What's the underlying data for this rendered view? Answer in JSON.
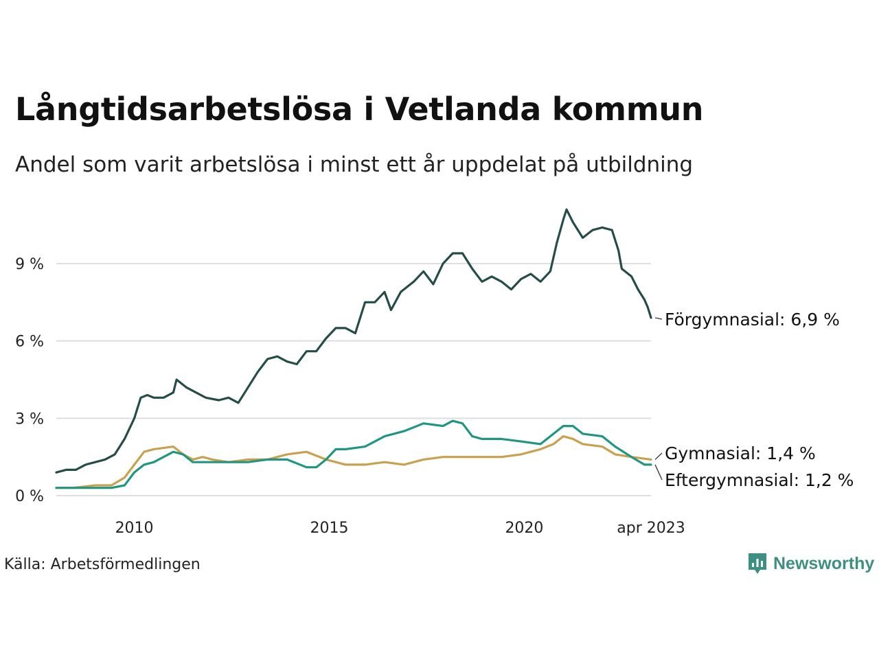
{
  "title": "Långtidsarbetslösa i Vetlanda kommun",
  "subtitle": "Andel som varit arbetslösa i minst ett år uppdelat på utbildning",
  "source": "Källa: Arbetsförmedlingen",
  "brand": {
    "name": "Newsworthy",
    "icon": "newsworthy-logo-icon",
    "color": "#3d8f84"
  },
  "chart_data": {
    "type": "line",
    "x_start": "2008-01",
    "x_end": "2023-04",
    "x_ticks": [
      {
        "date": "2010-01",
        "label": "2010"
      },
      {
        "date": "2015-01",
        "label": "2015"
      },
      {
        "date": "2020-01",
        "label": "2020"
      },
      {
        "date": "2023-04",
        "label": "apr 2023"
      }
    ],
    "y_ticks": [
      {
        "value": 0,
        "label": "0 %"
      },
      {
        "value": 3,
        "label": "3 %"
      },
      {
        "value": 6,
        "label": "6 %"
      },
      {
        "value": 9,
        "label": "9 %"
      }
    ],
    "ylim": [
      0,
      11.5
    ],
    "grid": true,
    "series": [
      {
        "name": "Förgymnasial",
        "end_label": "Förgymnasial: 6,9 %",
        "color": "#244d47",
        "points": [
          [
            "2008-01",
            0.9
          ],
          [
            "2008-04",
            1.0
          ],
          [
            "2008-07",
            1.0
          ],
          [
            "2008-10",
            1.2
          ],
          [
            "2009-01",
            1.3
          ],
          [
            "2009-04",
            1.4
          ],
          [
            "2009-07",
            1.6
          ],
          [
            "2009-10",
            2.2
          ],
          [
            "2010-01",
            3.0
          ],
          [
            "2010-03",
            3.8
          ],
          [
            "2010-05",
            3.9
          ],
          [
            "2010-07",
            3.8
          ],
          [
            "2010-10",
            3.8
          ],
          [
            "2011-01",
            4.0
          ],
          [
            "2011-02",
            4.5
          ],
          [
            "2011-05",
            4.2
          ],
          [
            "2011-08",
            4.0
          ],
          [
            "2011-11",
            3.8
          ],
          [
            "2012-03",
            3.7
          ],
          [
            "2012-06",
            3.8
          ],
          [
            "2012-09",
            3.6
          ],
          [
            "2012-12",
            4.2
          ],
          [
            "2013-03",
            4.8
          ],
          [
            "2013-06",
            5.3
          ],
          [
            "2013-09",
            5.4
          ],
          [
            "2013-12",
            5.2
          ],
          [
            "2014-03",
            5.1
          ],
          [
            "2014-06",
            5.6
          ],
          [
            "2014-09",
            5.6
          ],
          [
            "2014-12",
            6.1
          ],
          [
            "2015-03",
            6.5
          ],
          [
            "2015-06",
            6.5
          ],
          [
            "2015-09",
            6.3
          ],
          [
            "2015-12",
            7.5
          ],
          [
            "2016-03",
            7.5
          ],
          [
            "2016-06",
            7.9
          ],
          [
            "2016-08",
            7.2
          ],
          [
            "2016-11",
            7.9
          ],
          [
            "2017-03",
            8.3
          ],
          [
            "2017-06",
            8.7
          ],
          [
            "2017-09",
            8.2
          ],
          [
            "2017-12",
            9.0
          ],
          [
            "2018-03",
            9.4
          ],
          [
            "2018-06",
            9.4
          ],
          [
            "2018-09",
            8.8
          ],
          [
            "2018-12",
            8.3
          ],
          [
            "2019-03",
            8.5
          ],
          [
            "2019-06",
            8.3
          ],
          [
            "2019-09",
            8.0
          ],
          [
            "2019-12",
            8.4
          ],
          [
            "2020-03",
            8.6
          ],
          [
            "2020-06",
            8.3
          ],
          [
            "2020-09",
            8.7
          ],
          [
            "2020-11",
            9.8
          ],
          [
            "2021-01",
            10.7
          ],
          [
            "2021-02",
            11.1
          ],
          [
            "2021-04",
            10.6
          ],
          [
            "2021-07",
            10.0
          ],
          [
            "2021-10",
            10.3
          ],
          [
            "2022-01",
            10.4
          ],
          [
            "2022-04",
            10.3
          ],
          [
            "2022-06",
            9.5
          ],
          [
            "2022-07",
            8.8
          ],
          [
            "2022-10",
            8.5
          ],
          [
            "2022-12",
            8.0
          ],
          [
            "2023-02",
            7.6
          ],
          [
            "2023-03",
            7.3
          ],
          [
            "2023-04",
            6.9
          ]
        ]
      },
      {
        "name": "Gymnasial",
        "end_label": "Gymnasial: 1,4 %",
        "color": "#c9a04d",
        "points": [
          [
            "2008-01",
            0.3
          ],
          [
            "2008-06",
            0.3
          ],
          [
            "2009-01",
            0.4
          ],
          [
            "2009-06",
            0.4
          ],
          [
            "2009-10",
            0.7
          ],
          [
            "2010-01",
            1.2
          ],
          [
            "2010-04",
            1.7
          ],
          [
            "2010-07",
            1.8
          ],
          [
            "2011-01",
            1.9
          ],
          [
            "2011-04",
            1.6
          ],
          [
            "2011-07",
            1.4
          ],
          [
            "2011-10",
            1.5
          ],
          [
            "2012-01",
            1.4
          ],
          [
            "2012-06",
            1.3
          ],
          [
            "2012-12",
            1.4
          ],
          [
            "2013-06",
            1.4
          ],
          [
            "2013-12",
            1.6
          ],
          [
            "2014-06",
            1.7
          ],
          [
            "2014-12",
            1.4
          ],
          [
            "2015-06",
            1.2
          ],
          [
            "2015-12",
            1.2
          ],
          [
            "2016-06",
            1.3
          ],
          [
            "2016-12",
            1.2
          ],
          [
            "2017-06",
            1.4
          ],
          [
            "2017-12",
            1.5
          ],
          [
            "2018-06",
            1.5
          ],
          [
            "2018-12",
            1.5
          ],
          [
            "2019-06",
            1.5
          ],
          [
            "2019-12",
            1.6
          ],
          [
            "2020-06",
            1.8
          ],
          [
            "2020-10",
            2.0
          ],
          [
            "2021-01",
            2.3
          ],
          [
            "2021-04",
            2.2
          ],
          [
            "2021-07",
            2.0
          ],
          [
            "2022-01",
            1.9
          ],
          [
            "2022-05",
            1.6
          ],
          [
            "2022-10",
            1.5
          ],
          [
            "2023-04",
            1.4
          ]
        ]
      },
      {
        "name": "Eftergymnasial",
        "end_label": "Eftergymnasial: 1,2 %",
        "color": "#1e9682",
        "points": [
          [
            "2008-01",
            0.3
          ],
          [
            "2008-06",
            0.3
          ],
          [
            "2009-01",
            0.3
          ],
          [
            "2009-06",
            0.3
          ],
          [
            "2009-10",
            0.4
          ],
          [
            "2010-01",
            0.9
          ],
          [
            "2010-04",
            1.2
          ],
          [
            "2010-07",
            1.3
          ],
          [
            "2011-01",
            1.7
          ],
          [
            "2011-04",
            1.6
          ],
          [
            "2011-07",
            1.3
          ],
          [
            "2011-10",
            1.3
          ],
          [
            "2012-01",
            1.3
          ],
          [
            "2012-06",
            1.3
          ],
          [
            "2012-12",
            1.3
          ],
          [
            "2013-06",
            1.4
          ],
          [
            "2013-12",
            1.4
          ],
          [
            "2014-06",
            1.1
          ],
          [
            "2014-09",
            1.1
          ],
          [
            "2014-12",
            1.4
          ],
          [
            "2015-03",
            1.8
          ],
          [
            "2015-06",
            1.8
          ],
          [
            "2015-12",
            1.9
          ],
          [
            "2016-06",
            2.3
          ],
          [
            "2016-12",
            2.5
          ],
          [
            "2017-06",
            2.8
          ],
          [
            "2017-12",
            2.7
          ],
          [
            "2018-03",
            2.9
          ],
          [
            "2018-06",
            2.8
          ],
          [
            "2018-09",
            2.3
          ],
          [
            "2018-12",
            2.2
          ],
          [
            "2019-06",
            2.2
          ],
          [
            "2019-12",
            2.1
          ],
          [
            "2020-06",
            2.0
          ],
          [
            "2020-10",
            2.4
          ],
          [
            "2021-01",
            2.7
          ],
          [
            "2021-04",
            2.7
          ],
          [
            "2021-07",
            2.4
          ],
          [
            "2022-01",
            2.3
          ],
          [
            "2022-05",
            1.9
          ],
          [
            "2022-10",
            1.5
          ],
          [
            "2023-02",
            1.2
          ],
          [
            "2023-04",
            1.2
          ]
        ]
      }
    ]
  }
}
